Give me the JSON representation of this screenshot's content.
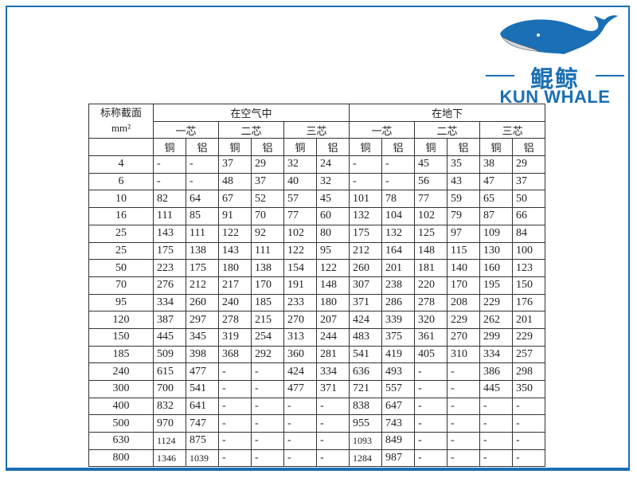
{
  "logo": {
    "chinese": "鲲鲸",
    "english": "KUN WHALE",
    "color": "#1a6fb5"
  },
  "table": {
    "corner_label": "标称截面",
    "corner_unit": "mm²",
    "groups": [
      "在空气中",
      "在地下"
    ],
    "cores": [
      "一芯",
      "二芯",
      "三芯",
      "一芯",
      "二芯",
      "三芯"
    ],
    "materials": [
      "铜",
      "铝",
      "铜",
      "铝",
      "铜",
      "铝",
      "铜",
      "铝",
      "铜",
      "铝",
      "铜",
      "铝"
    ],
    "rows": [
      [
        "4",
        "-",
        "-",
        "37",
        "29",
        "32",
        "24",
        "-",
        "-",
        "45",
        "35",
        "38",
        "29"
      ],
      [
        "6",
        "-",
        "-",
        "48",
        "37",
        "40",
        "32",
        "-",
        "-",
        "56",
        "43",
        "47",
        "37"
      ],
      [
        "10",
        "82",
        "64",
        "67",
        "52",
        "57",
        "45",
        "101",
        "78",
        "77",
        "59",
        "65",
        "50"
      ],
      [
        "16",
        "111",
        "85",
        "91",
        "70",
        "77",
        "60",
        "132",
        "104",
        "102",
        "79",
        "87",
        "66"
      ],
      [
        "25",
        "143",
        "111",
        "122",
        "92",
        "102",
        "80",
        "175",
        "132",
        "125",
        "97",
        "109",
        "84"
      ],
      [
        "25",
        "175",
        "138",
        "143",
        "111",
        "122",
        "95",
        "212",
        "164",
        "148",
        "115",
        "130",
        "100"
      ],
      [
        "50",
        "223",
        "175",
        "180",
        "138",
        "154",
        "122",
        "260",
        "201",
        "181",
        "140",
        "160",
        "123"
      ],
      [
        "70",
        "276",
        "212",
        "217",
        "170",
        "191",
        "148",
        "307",
        "238",
        "220",
        "170",
        "195",
        "150"
      ],
      [
        "95",
        "334",
        "260",
        "240",
        "185",
        "233",
        "180",
        "371",
        "286",
        "278",
        "208",
        "229",
        "176"
      ],
      [
        "120",
        "387",
        "297",
        "278",
        "215",
        "270",
        "207",
        "424",
        "339",
        "320",
        "229",
        "262",
        "201"
      ],
      [
        "150",
        "445",
        "345",
        "319",
        "254",
        "313",
        "244",
        "483",
        "375",
        "361",
        "270",
        "299",
        "229"
      ],
      [
        "185",
        "509",
        "398",
        "368",
        "292",
        "360",
        "281",
        "541",
        "419",
        "405",
        "310",
        "334",
        "257"
      ],
      [
        "240",
        "615",
        "477",
        "-",
        "-",
        "424",
        "334",
        "636",
        "493",
        "-",
        "-",
        "386",
        "298"
      ],
      [
        "300",
        "700",
        "541",
        "-",
        "-",
        "477",
        "371",
        "721",
        "557",
        "-",
        "-",
        "445",
        "350"
      ],
      [
        "400",
        "832",
        "641",
        "-",
        "-",
        "-",
        "-",
        "838",
        "647",
        "-",
        "-",
        "-",
        "-"
      ],
      [
        "500",
        "970",
        "747",
        "-",
        "-",
        "-",
        "-",
        "955",
        "743",
        "-",
        "-",
        "-",
        "-"
      ],
      [
        "630",
        "1124",
        "875",
        "-",
        "-",
        "-",
        "-",
        "1093",
        "849",
        "-",
        "-",
        "-",
        "-"
      ],
      [
        "800",
        "1346",
        "1039",
        "-",
        "-",
        "-",
        "-",
        "1284",
        "987",
        "-",
        "-",
        "-",
        "-"
      ]
    ]
  }
}
